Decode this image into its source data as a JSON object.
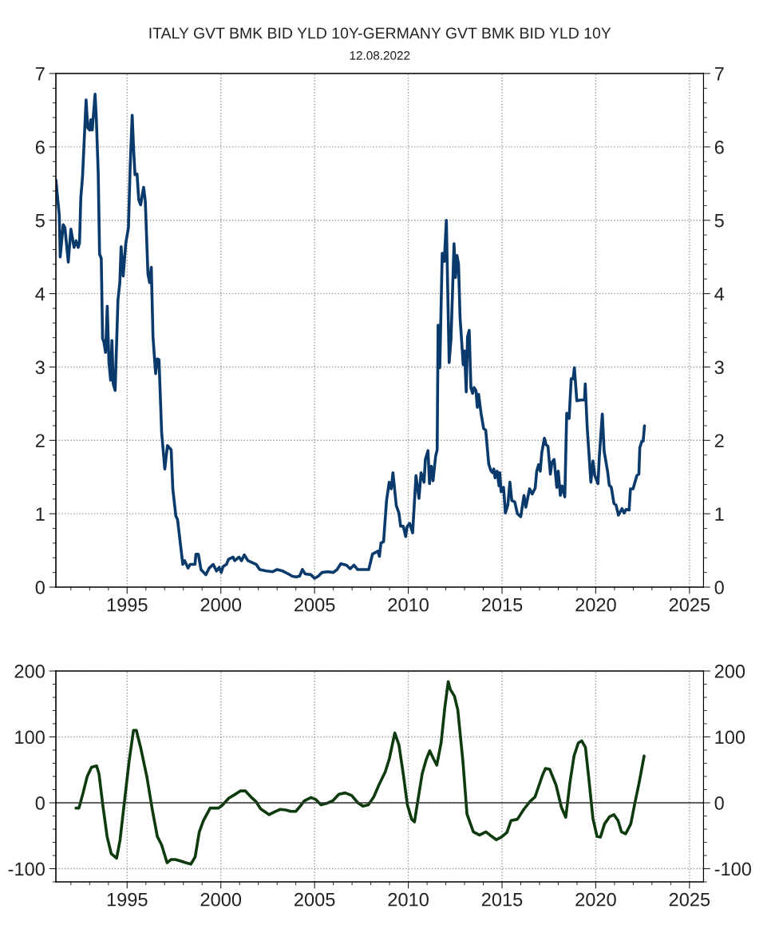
{
  "chart_data": [
    {
      "type": "line",
      "title": "ITALY GVT BMK BID YLD 10Y-GERMANY GVT BMK BID YLD 10Y",
      "subtitle": "12.08.2022",
      "xlim": [
        1991.2,
        2025.75
      ],
      "xticks": [
        1995,
        2000,
        2005,
        2010,
        2015,
        2020,
        2025
      ],
      "ylim": [
        0,
        7
      ],
      "yticks": [
        0,
        1,
        2,
        3,
        4,
        5,
        6,
        7
      ],
      "y2lim": [
        0,
        7
      ],
      "y2ticks": [
        0,
        1,
        2,
        3,
        4,
        5,
        6,
        7
      ],
      "grid": true,
      "legend": false,
      "marker": "none",
      "line_style": "solid",
      "series": [
        {
          "color": "#0a3a6b",
          "x": [
            1991.2,
            1991.38,
            1991.43,
            1991.59,
            1991.68,
            1991.86,
            1992.0,
            1992.17,
            1992.28,
            1992.39,
            1992.46,
            1992.53,
            1992.62,
            1992.81,
            1992.9,
            1993.0,
            1993.06,
            1993.14,
            1993.29,
            1993.36,
            1993.46,
            1993.53,
            1993.62,
            1993.69,
            1993.76,
            1993.85,
            1993.94,
            1994.03,
            1994.12,
            1994.19,
            1994.26,
            1994.36,
            1994.51,
            1994.61,
            1994.68,
            1994.79,
            1994.93,
            1995.07,
            1995.16,
            1995.27,
            1995.35,
            1995.42,
            1995.53,
            1995.62,
            1995.72,
            1995.88,
            1995.97,
            1996.11,
            1996.2,
            1996.29,
            1996.38,
            1996.52,
            1996.61,
            1996.7,
            1996.84,
            1997.01,
            1997.15,
            1997.35,
            1997.44,
            1997.6,
            1997.69,
            1997.86,
            1997.97,
            1998.07,
            1998.25,
            1998.36,
            1998.62,
            1998.67,
            1998.8,
            1998.94,
            1999.2,
            1999.38,
            1999.59,
            1999.77,
            1999.91,
            2000.02,
            2000.12,
            2000.3,
            2000.41,
            2000.65,
            2000.74,
            2000.97,
            2001.1,
            2001.25,
            2001.45,
            2001.89,
            2002.07,
            2002.42,
            2002.77,
            2003.0,
            2003.3,
            2003.6,
            2003.8,
            2004.0,
            2004.2,
            2004.35,
            2004.5,
            2004.8,
            2005.0,
            2005.2,
            2005.4,
            2005.7,
            2006.0,
            2006.2,
            2006.4,
            2006.7,
            2006.9,
            2007.1,
            2007.3,
            2007.6,
            2007.89,
            2008.09,
            2008.37,
            2008.46,
            2008.54,
            2008.68,
            2008.84,
            2008.98,
            2009.09,
            2009.18,
            2009.36,
            2009.5,
            2009.59,
            2009.73,
            2009.86,
            2009.93,
            2010.07,
            2010.23,
            2010.41,
            2010.57,
            2010.68,
            2010.84,
            2010.91,
            2011.05,
            2011.13,
            2011.23,
            2011.32,
            2011.46,
            2011.54,
            2011.59,
            2011.68,
            2011.81,
            2011.92,
            2012.03,
            2012.18,
            2012.28,
            2012.44,
            2012.52,
            2012.6,
            2012.68,
            2012.76,
            2012.93,
            2013.0,
            2013.09,
            2013.16,
            2013.25,
            2013.34,
            2013.43,
            2013.51,
            2013.61,
            2013.68,
            2013.75,
            2013.88,
            2014.02,
            2014.13,
            2014.29,
            2014.4,
            2014.5,
            2014.56,
            2014.63,
            2014.74,
            2014.84,
            2014.88,
            2014.95,
            2015.08,
            2015.18,
            2015.31,
            2015.42,
            2015.52,
            2015.68,
            2015.82,
            2016.0,
            2016.17,
            2016.27,
            2016.47,
            2016.61,
            2016.77,
            2016.85,
            2016.95,
            2017.04,
            2017.12,
            2017.26,
            2017.35,
            2017.45,
            2017.58,
            2017.66,
            2017.78,
            2017.92,
            2018.0,
            2018.11,
            2018.2,
            2018.35,
            2018.45,
            2018.58,
            2018.69,
            2018.79,
            2018.86,
            2018.99,
            2019.2,
            2019.4,
            2019.44,
            2019.54,
            2019.74,
            2019.85,
            2019.95,
            2020.12,
            2020.19,
            2020.35,
            2020.45,
            2020.63,
            2020.72,
            2020.83,
            2020.97,
            2021.08,
            2021.21,
            2021.4,
            2021.51,
            2021.62,
            2021.78,
            2021.85,
            2021.99,
            2022.19,
            2022.3,
            2022.35,
            2022.46,
            2022.53,
            2022.6
          ],
          "values": [
            5.55,
            5.07,
            4.5,
            4.94,
            4.9,
            4.43,
            4.88,
            4.63,
            4.72,
            4.63,
            4.69,
            5.31,
            5.59,
            6.64,
            6.26,
            6.23,
            6.37,
            6.23,
            6.72,
            6.37,
            5.62,
            4.54,
            4.48,
            3.39,
            3.34,
            3.2,
            3.83,
            3.06,
            2.82,
            3.36,
            2.77,
            2.68,
            3.91,
            4.15,
            4.64,
            4.24,
            4.69,
            4.9,
            5.71,
            6.43,
            5.95,
            5.62,
            5.63,
            5.28,
            5.21,
            5.45,
            5.26,
            4.27,
            4.15,
            4.36,
            3.41,
            2.91,
            3.11,
            3.1,
            2.11,
            1.61,
            1.93,
            1.87,
            1.33,
            0.97,
            0.92,
            0.55,
            0.31,
            0.36,
            0.26,
            0.31,
            0.31,
            0.45,
            0.45,
            0.24,
            0.17,
            0.26,
            0.31,
            0.22,
            0.27,
            0.2,
            0.28,
            0.31,
            0.38,
            0.41,
            0.36,
            0.41,
            0.36,
            0.44,
            0.36,
            0.31,
            0.24,
            0.22,
            0.21,
            0.24,
            0.22,
            0.18,
            0.15,
            0.14,
            0.15,
            0.24,
            0.18,
            0.17,
            0.12,
            0.15,
            0.2,
            0.21,
            0.2,
            0.24,
            0.32,
            0.3,
            0.25,
            0.3,
            0.24,
            0.24,
            0.24,
            0.45,
            0.49,
            0.42,
            0.6,
            0.62,
            1.18,
            1.43,
            1.34,
            1.56,
            1.11,
            1.01,
            0.83,
            0.83,
            0.69,
            0.82,
            0.87,
            0.74,
            1.52,
            1.21,
            1.56,
            1.43,
            1.74,
            1.86,
            1.41,
            1.65,
            1.45,
            1.79,
            1.87,
            3.57,
            2.99,
            4.55,
            4.44,
            5.0,
            3.06,
            3.39,
            4.68,
            4.22,
            4.52,
            4.4,
            3.68,
            3.03,
            3.22,
            2.66,
            3.41,
            3.5,
            2.72,
            2.64,
            2.72,
            2.68,
            2.45,
            2.63,
            2.37,
            2.16,
            2.14,
            1.68,
            1.59,
            1.56,
            1.61,
            1.49,
            1.58,
            1.38,
            1.56,
            1.3,
            1.36,
            1.01,
            1.12,
            1.43,
            1.18,
            1.16,
            1.0,
            0.96,
            1.25,
            1.09,
            1.34,
            1.27,
            1.35,
            1.58,
            1.67,
            1.58,
            1.83,
            2.03,
            1.94,
            1.92,
            1.54,
            1.7,
            1.74,
            1.36,
            1.58,
            1.25,
            1.38,
            1.23,
            2.37,
            2.3,
            2.84,
            2.84,
            2.99,
            2.54,
            2.55,
            2.55,
            2.77,
            2.19,
            1.43,
            1.72,
            1.52,
            1.41,
            1.78,
            2.36,
            1.85,
            1.58,
            1.39,
            1.36,
            1.14,
            1.12,
            0.98,
            1.07,
            1.01,
            1.06,
            1.05,
            1.34,
            1.34,
            1.52,
            1.54,
            1.9,
            1.99,
            1.99,
            2.2
          ]
        }
      ]
    },
    {
      "type": "line",
      "xlim": [
        1991.2,
        2025.75
      ],
      "xticks": [
        1995,
        2000,
        2005,
        2010,
        2015,
        2020,
        2025
      ],
      "ylim": [
        -120,
        200
      ],
      "yticks": [
        -100,
        0,
        100,
        200
      ],
      "y2lim": [
        -120,
        200
      ],
      "y2ticks": [
        -100,
        0,
        100,
        200
      ],
      "grid": true,
      "legend": false,
      "marker": "none",
      "line_style": "solid",
      "ref_lines": [
        {
          "axis": "y",
          "value": 0,
          "color": "#333333",
          "line_style": "solid"
        }
      ],
      "series": [
        {
          "color": "#0d3b0d",
          "x": [
            1992.27,
            1992.43,
            1992.65,
            1992.87,
            1993.1,
            1993.37,
            1993.5,
            1993.7,
            1993.93,
            1994.15,
            1994.44,
            1994.62,
            1994.89,
            1995.11,
            1995.34,
            1995.49,
            1995.72,
            1996.05,
            1996.34,
            1996.61,
            1996.84,
            1997.13,
            1997.35,
            1997.57,
            1997.8,
            1998.13,
            1998.4,
            1998.63,
            1998.85,
            1999.07,
            1999.43,
            1999.88,
            2000.1,
            2000.42,
            2000.71,
            2001.04,
            2001.31,
            2001.6,
            2001.87,
            2002.12,
            2002.57,
            2002.84,
            2003.17,
            2003.46,
            2003.73,
            2004.0,
            2004.18,
            2004.45,
            2004.81,
            2005.07,
            2005.34,
            2005.63,
            2005.97,
            2006.3,
            2006.64,
            2006.98,
            2007.31,
            2007.58,
            2007.87,
            2008.16,
            2008.43,
            2008.77,
            2008.99,
            2009.28,
            2009.5,
            2009.73,
            2009.95,
            2010.18,
            2010.33,
            2010.49,
            2010.74,
            2010.96,
            2011.14,
            2011.34,
            2011.52,
            2011.75,
            2011.95,
            2012.13,
            2012.24,
            2012.46,
            2012.64,
            2012.91,
            2013.13,
            2013.47,
            2013.8,
            2014.14,
            2014.36,
            2014.7,
            2014.97,
            2015.26,
            2015.48,
            2015.82,
            2016.16,
            2016.49,
            2016.76,
            2016.98,
            2017.16,
            2017.32,
            2017.54,
            2017.88,
            2018.17,
            2018.4,
            2018.62,
            2018.84,
            2019.07,
            2019.25,
            2019.45,
            2019.63,
            2019.85,
            2020.07,
            2020.25,
            2020.47,
            2020.74,
            2020.97,
            2021.19,
            2021.37,
            2021.6,
            2021.87,
            2022.09,
            2022.31,
            2022.58
          ],
          "values": [
            -8,
            -8,
            15,
            40,
            54,
            56,
            44,
            -3,
            -51,
            -77,
            -84,
            -57,
            10,
            64,
            110,
            110,
            84,
            40,
            -10,
            -51,
            -64,
            -91,
            -86,
            -86,
            -88,
            -91,
            -93,
            -82,
            -44,
            -27,
            -8,
            -8,
            -3,
            7,
            12,
            18,
            18,
            9,
            2,
            -9,
            -18,
            -14,
            -10,
            -11,
            -13,
            -13,
            -7,
            3,
            8,
            5,
            -3,
            -1,
            3,
            13,
            15,
            11,
            0,
            -5,
            -3,
            9,
            27,
            47,
            67,
            106,
            88,
            44,
            -3,
            -25,
            -29,
            0,
            44,
            66,
            79,
            67,
            57,
            91,
            145,
            184,
            172,
            162,
            141,
            64,
            -17,
            -44,
            -49,
            -44,
            -49,
            -56,
            -52,
            -45,
            -27,
            -25,
            -10,
            2,
            9,
            27,
            42,
            52,
            51,
            27,
            -7,
            -22,
            30,
            71,
            91,
            94,
            84,
            37,
            -24,
            -51,
            -52,
            -32,
            -21,
            -18,
            -27,
            -44,
            -47,
            -32,
            0,
            30,
            71
          ]
        }
      ]
    }
  ]
}
